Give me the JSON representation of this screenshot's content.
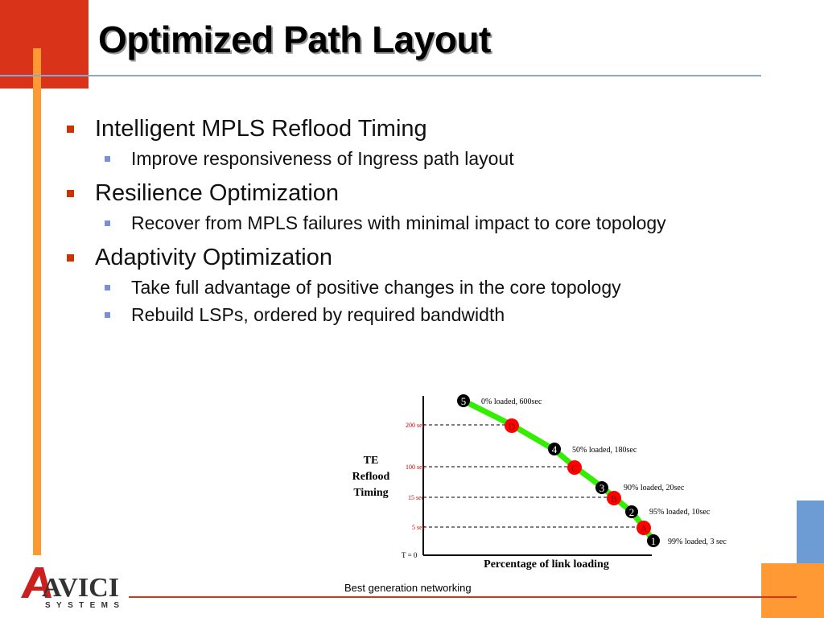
{
  "title": "Optimized Path Layout",
  "bullets": [
    {
      "text": "Intelligent MPLS Reflood Timing",
      "sub": [
        "Improve responsiveness of Ingress path layout"
      ]
    },
    {
      "text": "Resilience Optimization",
      "sub": [
        "Recover from MPLS failures with minimal impact to core topology"
      ]
    },
    {
      "text": "Adaptivity Optimization",
      "sub": [
        "Take full advantage of positive changes in the core topology",
        "Rebuild LSPs, ordered by required bandwidth"
      ]
    }
  ],
  "colors": {
    "accent_red": "#cc3300",
    "accent_orange": "#ff9933",
    "accent_blue": "#6699cc",
    "line_green": "#33ee00",
    "marker_red": "#ff0000"
  },
  "chart_data": {
    "type": "line",
    "ylabel": [
      "TE",
      "Reflood",
      "Timing"
    ],
    "xlabel": "Percentage of link loading",
    "origin_label": "T = 0",
    "y_ticks": [
      "200 sec",
      "100 sec",
      "15 sec",
      "5 sec"
    ],
    "points": [
      {
        "num": "5",
        "label": "0% loaded, 600sec"
      },
      {
        "num": "4",
        "label": "50% loaded, 180sec"
      },
      {
        "num": "3",
        "label": "90% loaded, 20sec"
      },
      {
        "num": "2",
        "label": "95% loaded, 10sec"
      },
      {
        "num": "1",
        "label": "99% loaded, 3 sec"
      }
    ],
    "markers": [
      "D",
      "C",
      "B",
      "A"
    ]
  },
  "footer": {
    "tagline": "Best generation networking"
  },
  "logo": {
    "name": "AVICI",
    "sub": "SYSTEMS"
  }
}
